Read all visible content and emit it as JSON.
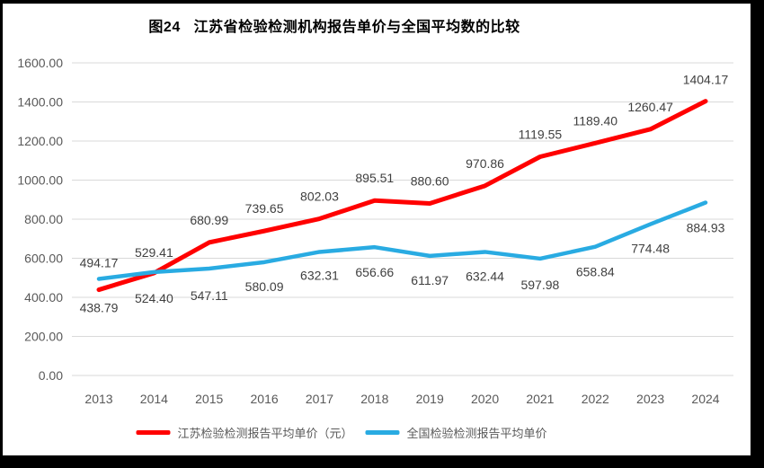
{
  "chart_data": {
    "type": "line",
    "title": "图24   江苏省检验检测机构报告单价与全国平均数的比较",
    "categories": [
      "2013",
      "2014",
      "2015",
      "2016",
      "2017",
      "2018",
      "2019",
      "2020",
      "2021",
      "2022",
      "2023",
      "2024"
    ],
    "series": [
      {
        "name": "江苏检验检测报告平均单价（元）",
        "color": "#ff0000",
        "values": [
          438.79,
          524.4,
          680.99,
          739.65,
          802.03,
          895.51,
          880.6,
          970.86,
          1119.55,
          1189.4,
          1260.47,
          1404.17
        ]
      },
      {
        "name": "全国检验检测报告平均单价",
        "color": "#29abe2",
        "values": [
          494.17,
          529.41,
          547.11,
          580.09,
          632.31,
          656.66,
          611.97,
          632.44,
          597.98,
          658.84,
          774.48,
          884.93
        ]
      }
    ],
    "xlabel": "",
    "ylabel": "",
    "ylim": [
      0,
      1600
    ],
    "ytick_step": 200,
    "ytick_decimals": 2,
    "grid": true,
    "data_labels": true,
    "legend_position": "bottom",
    "colors": {
      "gridline": "#d9d9d9",
      "axis_text": "#595959",
      "data_label_text": "#3f3f3f",
      "title_text": "#000000",
      "frame": "#000000",
      "background": "#ffffff"
    }
  }
}
